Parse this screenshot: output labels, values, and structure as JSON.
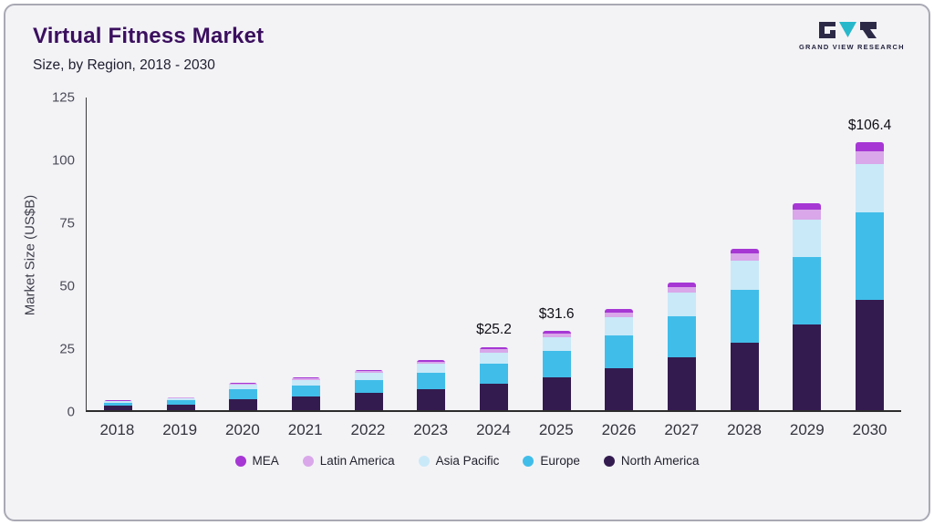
{
  "header": {
    "title": "Virtual Fitness Market",
    "subtitle": "Size, by Region, 2018 - 2030"
  },
  "logo": {
    "text": "GRAND VIEW RESEARCH"
  },
  "chart_data": {
    "type": "bar",
    "stacked": true,
    "title": "Virtual Fitness Market Size, by Region, 2018 - 2030",
    "ylabel": "Market Size (US$B)",
    "ylim": [
      0,
      125
    ],
    "yticks": [
      0,
      25,
      50,
      75,
      100,
      125
    ],
    "grid": false,
    "legend_position": "bottom",
    "categories": [
      "2018",
      "2019",
      "2020",
      "2021",
      "2022",
      "2023",
      "2024",
      "2025",
      "2026",
      "2027",
      "2028",
      "2029",
      "2030"
    ],
    "series": [
      {
        "name": "North America",
        "color": "#341b4f",
        "values": [
          1.7,
          2.2,
          4.5,
          5.5,
          6.8,
          8.5,
          10.5,
          13.2,
          16.8,
          21.0,
          26.8,
          34.0,
          43.8
        ]
      },
      {
        "name": "Europe",
        "color": "#41bde9",
        "values": [
          1.3,
          1.7,
          3.7,
          4.2,
          5.2,
          6.5,
          8.0,
          10.2,
          12.9,
          16.4,
          20.9,
          26.9,
          35.0
        ]
      },
      {
        "name": "Asia Pacific",
        "color": "#c9e9f8",
        "values": [
          0.6,
          0.8,
          2.0,
          2.3,
          2.8,
          3.5,
          4.5,
          5.6,
          7.2,
          9.2,
          11.6,
          14.9,
          19.2
        ]
      },
      {
        "name": "Latin America",
        "color": "#d9a7ea",
        "values": [
          0.2,
          0.25,
          0.45,
          0.55,
          0.7,
          0.85,
          1.2,
          1.5,
          1.9,
          2.4,
          3.0,
          3.9,
          5.0
        ]
      },
      {
        "name": "MEA",
        "color": "#a637d4",
        "values": [
          0.15,
          0.2,
          0.35,
          0.45,
          0.55,
          0.65,
          1.0,
          1.1,
          1.3,
          1.6,
          2.0,
          2.4,
          3.4
        ]
      }
    ],
    "annotations": [
      {
        "category": "2024",
        "label": "$25.2"
      },
      {
        "category": "2025",
        "label": "$31.6"
      },
      {
        "category": "2030",
        "label": "$106.4"
      }
    ],
    "legend": [
      "MEA",
      "Latin America",
      "Asia Pacific",
      "Europe",
      "North America"
    ]
  }
}
